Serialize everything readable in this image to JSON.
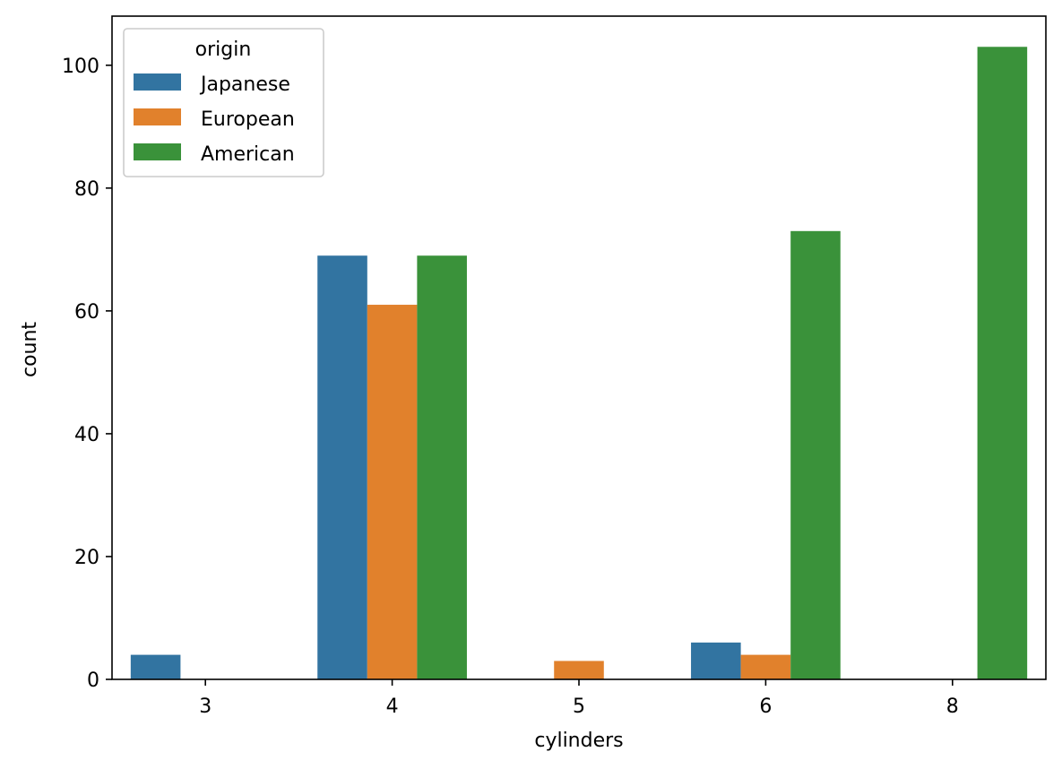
{
  "chart_data": {
    "type": "bar",
    "categories": [
      "3",
      "4",
      "5",
      "6",
      "8"
    ],
    "series": [
      {
        "name": "Japanese",
        "color": "#3274a1",
        "values": [
          4,
          69,
          0,
          6,
          0
        ]
      },
      {
        "name": "European",
        "color": "#e1812c",
        "values": [
          0,
          61,
          3,
          4,
          0
        ]
      },
      {
        "name": "American",
        "color": "#3a923a",
        "values": [
          0,
          69,
          0,
          73,
          103
        ]
      }
    ],
    "xlabel": "cylinders",
    "ylabel": "count",
    "ylim": [
      0,
      108
    ],
    "yticks": [
      0,
      20,
      40,
      60,
      80,
      100
    ],
    "legend_title": "origin",
    "legend_position": "top-left",
    "grid": false
  }
}
